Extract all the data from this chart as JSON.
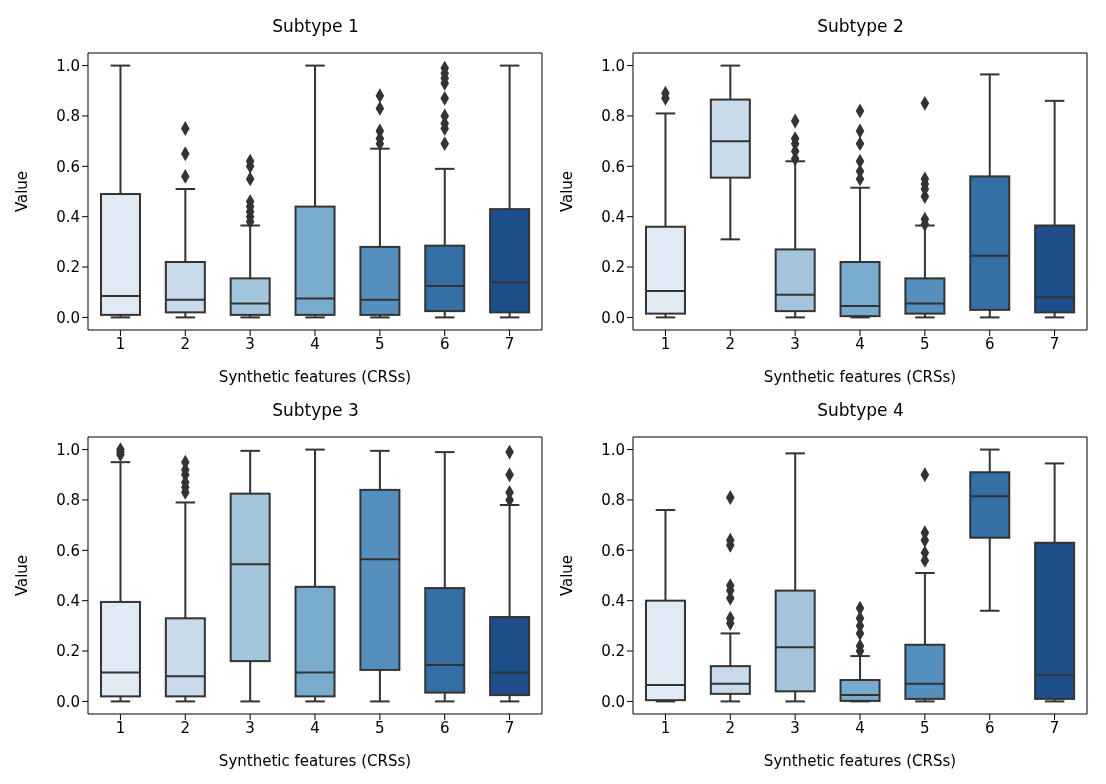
{
  "chart_data": [
    {
      "type": "box",
      "title": "Subtype 1",
      "xlabel": "Synthetic features (CRSs)",
      "ylabel": "Value",
      "categories": [
        "1",
        "2",
        "3",
        "4",
        "5",
        "6",
        "7"
      ],
      "colors": [
        "#dfeaf4",
        "#c9daea",
        "#a3c6dc",
        "#79abcc",
        "#548fbd",
        "#3470a6",
        "#1f4f8a"
      ],
      "ylim": [
        -0.05,
        1.05
      ],
      "yticks": [
        {
          "value": 0,
          "label": "0.0"
        },
        {
          "value": 0.2,
          "label": "0.2"
        },
        {
          "value": 0.4,
          "label": "0.4"
        },
        {
          "value": 0.6,
          "label": "0.6"
        },
        {
          "value": 0.8,
          "label": "0.8"
        },
        {
          "value": 1,
          "label": "1.0"
        }
      ],
      "boxes": [
        {
          "low": 0,
          "q1": 0.01,
          "median": 0.085,
          "q3": 0.49,
          "high": 1.0
        },
        {
          "low": 0,
          "q1": 0.02,
          "median": 0.07,
          "q3": 0.22,
          "high": 0.51,
          "outliers": [
            0.56,
            0.65,
            0.75
          ]
        },
        {
          "low": 0,
          "q1": 0.01,
          "median": 0.055,
          "q3": 0.155,
          "high": 0.365,
          "outliers": [
            0.38,
            0.4,
            0.42,
            0.44,
            0.46,
            0.55,
            0.6,
            0.62
          ]
        },
        {
          "low": 0,
          "q1": 0.01,
          "median": 0.075,
          "q3": 0.44,
          "high": 1.0
        },
        {
          "low": 0,
          "q1": 0.01,
          "median": 0.07,
          "q3": 0.28,
          "high": 0.67,
          "outliers": [
            0.69,
            0.71,
            0.74,
            0.83,
            0.88
          ]
        },
        {
          "low": 0,
          "q1": 0.025,
          "median": 0.125,
          "q3": 0.285,
          "high": 0.59,
          "outliers": [
            0.69,
            0.75,
            0.77,
            0.8,
            0.87,
            0.93,
            0.95,
            0.97,
            0.99
          ]
        },
        {
          "low": 0,
          "q1": 0.02,
          "median": 0.14,
          "q3": 0.43,
          "high": 1.0
        }
      ]
    },
    {
      "type": "box",
      "title": "Subtype 2",
      "xlabel": "Synthetic features (CRSs)",
      "ylabel": "Value",
      "categories": [
        "1",
        "2",
        "3",
        "4",
        "5",
        "6",
        "7"
      ],
      "colors": [
        "#dfeaf4",
        "#c9daea",
        "#a3c6dc",
        "#79abcc",
        "#548fbd",
        "#3470a6",
        "#1f4f8a"
      ],
      "ylim": [
        -0.05,
        1.05
      ],
      "yticks": [
        {
          "value": 0,
          "label": "0.0"
        },
        {
          "value": 0.2,
          "label": "0.2"
        },
        {
          "value": 0.4,
          "label": "0.4"
        },
        {
          "value": 0.6,
          "label": "0.6"
        },
        {
          "value": 0.8,
          "label": "0.8"
        },
        {
          "value": 1,
          "label": "1.0"
        }
      ],
      "boxes": [
        {
          "low": 0,
          "q1": 0.015,
          "median": 0.105,
          "q3": 0.36,
          "high": 0.81,
          "outliers": [
            0.87,
            0.89
          ]
        },
        {
          "low": 0.31,
          "q1": 0.555,
          "median": 0.7,
          "q3": 0.865,
          "high": 1.0
        },
        {
          "low": 0,
          "q1": 0.025,
          "median": 0.09,
          "q3": 0.27,
          "high": 0.62,
          "outliers": [
            0.63,
            0.66,
            0.69,
            0.71,
            0.78
          ]
        },
        {
          "low": 0,
          "q1": 0.005,
          "median": 0.045,
          "q3": 0.22,
          "high": 0.515,
          "outliers": [
            0.55,
            0.58,
            0.62,
            0.69,
            0.74,
            0.82
          ]
        },
        {
          "low": 0,
          "q1": 0.015,
          "median": 0.055,
          "q3": 0.155,
          "high": 0.365,
          "outliers": [
            0.37,
            0.39,
            0.48,
            0.51,
            0.53,
            0.55,
            0.85
          ]
        },
        {
          "low": 0,
          "q1": 0.03,
          "median": 0.245,
          "q3": 0.56,
          "high": 0.965
        },
        {
          "low": 0,
          "q1": 0.02,
          "median": 0.08,
          "q3": 0.365,
          "high": 0.86
        }
      ]
    },
    {
      "type": "box",
      "title": "Subtype 3",
      "xlabel": "Synthetic features (CRSs)",
      "ylabel": "Value",
      "categories": [
        "1",
        "2",
        "3",
        "4",
        "5",
        "6",
        "7"
      ],
      "colors": [
        "#dfeaf4",
        "#c9daea",
        "#a3c6dc",
        "#79abcc",
        "#548fbd",
        "#3470a6",
        "#1f4f8a"
      ],
      "ylim": [
        -0.05,
        1.05
      ],
      "yticks": [
        {
          "value": 0,
          "label": "0.0"
        },
        {
          "value": 0.2,
          "label": "0.2"
        },
        {
          "value": 0.4,
          "label": "0.4"
        },
        {
          "value": 0.6,
          "label": "0.6"
        },
        {
          "value": 0.8,
          "label": "0.8"
        },
        {
          "value": 1,
          "label": "1.0"
        }
      ],
      "boxes": [
        {
          "low": 0,
          "q1": 0.02,
          "median": 0.115,
          "q3": 0.395,
          "high": 0.95,
          "outliers": [
            0.98,
            0.99,
            1.0
          ]
        },
        {
          "low": 0,
          "q1": 0.02,
          "median": 0.1,
          "q3": 0.33,
          "high": 0.79,
          "outliers": [
            0.83,
            0.85,
            0.87,
            0.9,
            0.92,
            0.95
          ]
        },
        {
          "low": 0,
          "q1": 0.16,
          "median": 0.545,
          "q3": 0.825,
          "high": 0.995
        },
        {
          "low": 0,
          "q1": 0.02,
          "median": 0.115,
          "q3": 0.455,
          "high": 1.0
        },
        {
          "low": 0,
          "q1": 0.125,
          "median": 0.565,
          "q3": 0.84,
          "high": 0.995
        },
        {
          "low": 0,
          "q1": 0.035,
          "median": 0.145,
          "q3": 0.45,
          "high": 0.99
        },
        {
          "low": 0,
          "q1": 0.025,
          "median": 0.115,
          "q3": 0.335,
          "high": 0.78,
          "outliers": [
            0.8,
            0.83,
            0.9,
            0.99
          ]
        }
      ]
    },
    {
      "type": "box",
      "title": "Subtype 4",
      "xlabel": "Synthetic features (CRSs)",
      "ylabel": "Value",
      "categories": [
        "1",
        "2",
        "3",
        "4",
        "5",
        "6",
        "7"
      ],
      "colors": [
        "#dfeaf4",
        "#c9daea",
        "#a3c6dc",
        "#79abcc",
        "#548fbd",
        "#3470a6",
        "#1f4f8a"
      ],
      "ylim": [
        -0.05,
        1.05
      ],
      "yticks": [
        {
          "value": 0,
          "label": "0.0"
        },
        {
          "value": 0.2,
          "label": "0.2"
        },
        {
          "value": 0.4,
          "label": "0.4"
        },
        {
          "value": 0.6,
          "label": "0.6"
        },
        {
          "value": 0.8,
          "label": "0.8"
        },
        {
          "value": 1,
          "label": "1.0"
        }
      ],
      "boxes": [
        {
          "low": 0,
          "q1": 0.005,
          "median": 0.065,
          "q3": 0.4,
          "high": 0.76
        },
        {
          "low": 0,
          "q1": 0.03,
          "median": 0.07,
          "q3": 0.14,
          "high": 0.27,
          "outliers": [
            0.31,
            0.33,
            0.41,
            0.44,
            0.46,
            0.62,
            0.64,
            0.81
          ]
        },
        {
          "low": 0,
          "q1": 0.04,
          "median": 0.215,
          "q3": 0.44,
          "high": 0.985
        },
        {
          "low": 0,
          "q1": 0.002,
          "median": 0.025,
          "q3": 0.085,
          "high": 0.18,
          "outliers": [
            0.2,
            0.22,
            0.27,
            0.3,
            0.33,
            0.37
          ]
        },
        {
          "low": 0,
          "q1": 0.01,
          "median": 0.07,
          "q3": 0.225,
          "high": 0.51,
          "outliers": [
            0.56,
            0.59,
            0.64,
            0.67,
            0.9
          ]
        },
        {
          "low": 0.36,
          "q1": 0.65,
          "median": 0.815,
          "q3": 0.91,
          "high": 1.0
        },
        {
          "low": 0,
          "q1": 0.01,
          "median": 0.105,
          "q3": 0.63,
          "high": 0.945
        }
      ]
    }
  ]
}
